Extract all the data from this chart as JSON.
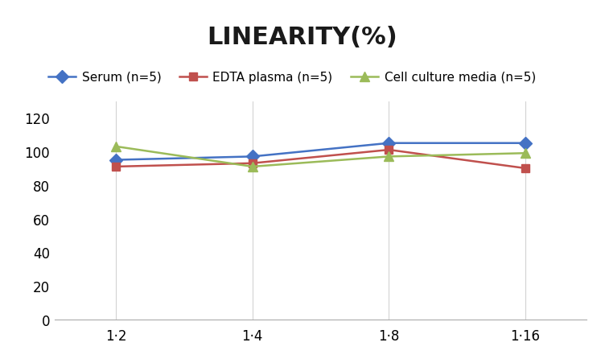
{
  "title": "LINEARITY(%)",
  "x_labels": [
    "1·2",
    "1·4",
    "1·8",
    "1·16"
  ],
  "x_positions": [
    0,
    1,
    2,
    3
  ],
  "series": [
    {
      "label": "Serum (n=5)",
      "values": [
        95,
        97,
        105,
        105
      ],
      "color": "#4472C4",
      "marker": "D",
      "markersize": 8,
      "linewidth": 1.8
    },
    {
      "label": "EDTA plasma (n=5)",
      "values": [
        91,
        93,
        101,
        90
      ],
      "color": "#C0504D",
      "marker": "s",
      "markersize": 7,
      "linewidth": 1.8
    },
    {
      "label": "Cell culture media (n=5)",
      "values": [
        103,
        91,
        97,
        99
      ],
      "color": "#9BBB59",
      "marker": "^",
      "markersize": 9,
      "linewidth": 1.8
    }
  ],
  "ylim": [
    0,
    130
  ],
  "yticks": [
    0,
    20,
    40,
    60,
    80,
    100,
    120
  ],
  "xlim": [
    -0.45,
    3.45
  ],
  "background_color": "#ffffff",
  "grid_color": "#d3d3d3",
  "title_fontsize": 22,
  "legend_fontsize": 11,
  "tick_fontsize": 12
}
